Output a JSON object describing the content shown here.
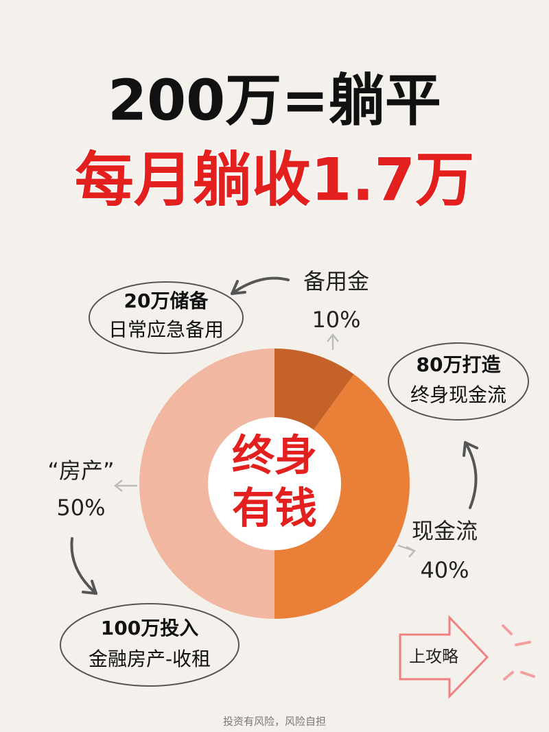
{
  "chart_data": {
    "type": "donut",
    "title": "200万=躺平",
    "subtitle": "每月躺收1.7万",
    "center_text": [
      "终身",
      "有钱"
    ],
    "categories": [
      "备用金",
      "现金流",
      "“房产”"
    ],
    "values": [
      10,
      40,
      50
    ],
    "value_labels": [
      "10%",
      "40%",
      "50%"
    ],
    "colors": [
      "#c4622a",
      "#ea8038",
      "#f2b7a0"
    ],
    "annotations": [
      [
        "20万储备",
        "日常应急备用"
      ],
      [
        "80万打造",
        "终身现金流"
      ],
      [
        "100万投入",
        "金融房产-收租"
      ]
    ],
    "button": "上攻略",
    "footer": "投资有风险，风险自担"
  }
}
